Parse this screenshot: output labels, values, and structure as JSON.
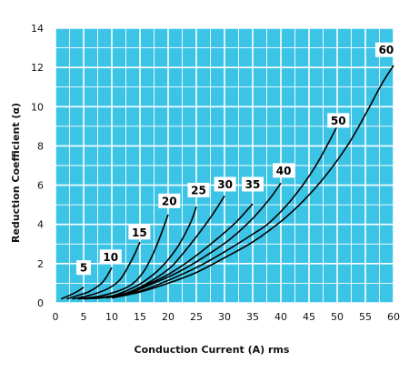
{
  "chart_data": {
    "type": "line",
    "title": "",
    "xlabel": "Conduction Current (A) rms",
    "ylabel": "Reduction Coefficient (α)",
    "xlim": [
      0,
      60
    ],
    "ylim": [
      0,
      14
    ],
    "xticks": [
      0,
      5,
      10,
      15,
      20,
      25,
      30,
      35,
      40,
      45,
      50,
      55,
      60
    ],
    "yticks": [
      0,
      2,
      4,
      6,
      8,
      10,
      12,
      14
    ],
    "x_minor_step": 2.5,
    "y_minor_step": 1,
    "grid": true,
    "legend": "none",
    "colors": {
      "background": "#3cc4e6",
      "grid": "#ffffff",
      "line": "#000000"
    },
    "series": [
      {
        "name": "5",
        "label_at": [
          5.0,
          1.8
        ],
        "points": [
          [
            1,
            0.2
          ],
          [
            2,
            0.32
          ],
          [
            3,
            0.45
          ],
          [
            4,
            0.6
          ],
          [
            5,
            0.8
          ]
        ]
      },
      {
        "name": "10",
        "label_at": [
          9.8,
          2.35
        ],
        "points": [
          [
            2,
            0.2
          ],
          [
            4,
            0.38
          ],
          [
            6,
            0.58
          ],
          [
            8,
            0.95
          ],
          [
            9,
            1.3
          ],
          [
            10,
            1.8
          ]
        ]
      },
      {
        "name": "15",
        "label_at": [
          14.9,
          3.6
        ],
        "points": [
          [
            3,
            0.2
          ],
          [
            6,
            0.38
          ],
          [
            9,
            0.68
          ],
          [
            11,
            1.05
          ],
          [
            12,
            1.4
          ],
          [
            13,
            1.9
          ],
          [
            14,
            2.45
          ],
          [
            15,
            3.1
          ]
        ]
      },
      {
        "name": "20",
        "label_at": [
          20.2,
          5.2
        ],
        "points": [
          [
            4,
            0.2
          ],
          [
            8,
            0.35
          ],
          [
            12,
            0.7
          ],
          [
            14,
            1.05
          ],
          [
            15,
            1.35
          ],
          [
            16,
            1.75
          ],
          [
            17,
            2.3
          ],
          [
            18,
            2.95
          ],
          [
            19,
            3.7
          ],
          [
            20,
            4.5
          ]
        ]
      },
      {
        "name": "25",
        "label_at": [
          25.4,
          5.75
        ],
        "points": [
          [
            5,
            0.2
          ],
          [
            10,
            0.35
          ],
          [
            14,
            0.8
          ],
          [
            16,
            1.15
          ],
          [
            18,
            1.6
          ],
          [
            20,
            2.2
          ],
          [
            22,
            3.0
          ],
          [
            24,
            4.1
          ],
          [
            25,
            4.9
          ]
        ]
      },
      {
        "name": "30",
        "label_at": [
          30.1,
          6.05
        ],
        "points": [
          [
            6,
            0.22
          ],
          [
            12,
            0.45
          ],
          [
            16,
            0.95
          ],
          [
            20,
            1.7
          ],
          [
            22,
            2.3
          ],
          [
            24,
            3.0
          ],
          [
            26,
            3.75
          ],
          [
            28,
            4.55
          ],
          [
            30,
            5.45
          ]
        ]
      },
      {
        "name": "35",
        "label_at": [
          35.0,
          6.05
        ],
        "points": [
          [
            7,
            0.22
          ],
          [
            12,
            0.45
          ],
          [
            16,
            0.9
          ],
          [
            20,
            1.45
          ],
          [
            24,
            2.2
          ],
          [
            28,
            3.1
          ],
          [
            32,
            4.1
          ],
          [
            35,
            5.05
          ]
        ]
      },
      {
        "name": "40",
        "label_at": [
          40.5,
          6.75
        ],
        "points": [
          [
            8,
            0.25
          ],
          [
            13,
            0.5
          ],
          [
            17,
            0.95
          ],
          [
            22,
            1.6
          ],
          [
            27,
            2.45
          ],
          [
            31,
            3.25
          ],
          [
            35,
            4.3
          ],
          [
            38,
            5.3
          ],
          [
            40,
            6.1
          ]
        ]
      },
      {
        "name": "50",
        "label_at": [
          50.2,
          9.3
        ],
        "points": [
          [
            9,
            0.25
          ],
          [
            15,
            0.6
          ],
          [
            20,
            1.15
          ],
          [
            25,
            1.8
          ],
          [
            30,
            2.6
          ],
          [
            35,
            3.5
          ],
          [
            38,
            4.1
          ],
          [
            42,
            5.3
          ],
          [
            46,
            6.9
          ],
          [
            50,
            9.0
          ]
        ]
      },
      {
        "name": "60",
        "label_at": [
          58.7,
          12.9
        ],
        "points": [
          [
            10,
            0.25
          ],
          [
            15,
            0.55
          ],
          [
            20,
            1.0
          ],
          [
            25,
            1.55
          ],
          [
            30,
            2.3
          ],
          [
            35,
            3.1
          ],
          [
            40,
            4.15
          ],
          [
            44,
            5.2
          ],
          [
            48,
            6.5
          ],
          [
            52,
            8.1
          ],
          [
            55,
            9.6
          ],
          [
            58,
            11.2
          ],
          [
            60,
            12.1
          ]
        ]
      }
    ]
  }
}
